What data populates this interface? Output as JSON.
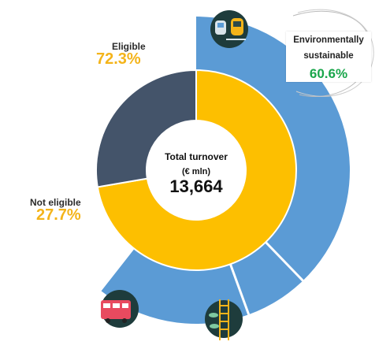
{
  "chart_data": {
    "type": "pie",
    "title": "",
    "center": {
      "line1": "Total turnover",
      "line2": "(€ mln)",
      "value": "13,664"
    },
    "inner_ring": [
      {
        "name": "Eligible",
        "value": 72.3,
        "display": "72.3%",
        "color": "#fdbf00"
      },
      {
        "name": "Not eligible",
        "value": 27.7,
        "display": "27.7%",
        "color": "#44546a"
      }
    ],
    "outer_ring": [
      {
        "name": "Environmentally sustainable",
        "value": 60.6,
        "display": "60.6%",
        "color": "#5b9bd5"
      }
    ],
    "annotation_box": {
      "line1": "Environmentally",
      "line2": "sustainable",
      "value": "60.6%"
    },
    "icons": [
      "train-icon",
      "bus-icon",
      "ladder-plant-icon"
    ],
    "colors": {
      "label_pct": "#f4b41a",
      "sustainable_pct": "#1aa64b",
      "icon_bg": "#1e3c3c",
      "outer_edge": "#ffffff"
    }
  }
}
